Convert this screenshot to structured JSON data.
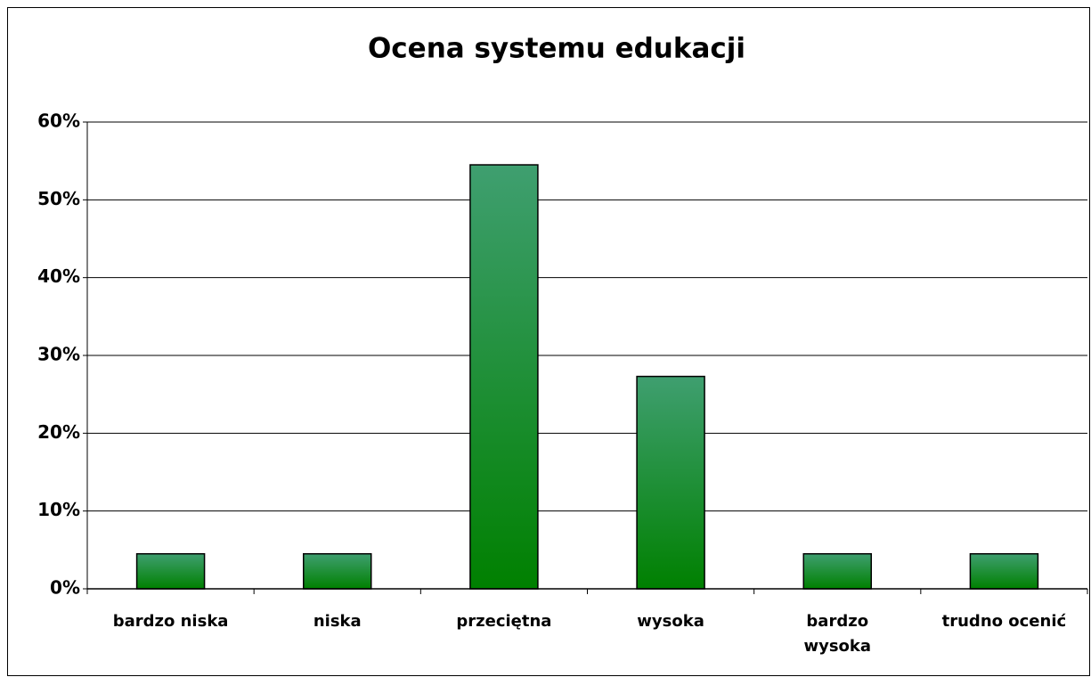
{
  "chart_data": {
    "type": "bar",
    "title": "Ocena systemu edukacji",
    "categories": [
      "bardzo niska",
      "niska",
      "przeciętna",
      "wysoka",
      "bardzo wysoka",
      "trudno ocenić"
    ],
    "values": [
      4.5,
      4.5,
      54.5,
      27.3,
      4.5,
      4.5
    ],
    "color": "#008000",
    "ylim": [
      0,
      60
    ],
    "yticks": [
      {
        "value": 0,
        "label": "0%"
      },
      {
        "value": 10,
        "label": "10%"
      },
      {
        "value": 20,
        "label": "20%"
      },
      {
        "value": 30,
        "label": "30%"
      },
      {
        "value": 40,
        "label": "40%"
      },
      {
        "value": 50,
        "label": "50%"
      },
      {
        "value": 60,
        "label": "60%"
      }
    ],
    "grid": true
  }
}
